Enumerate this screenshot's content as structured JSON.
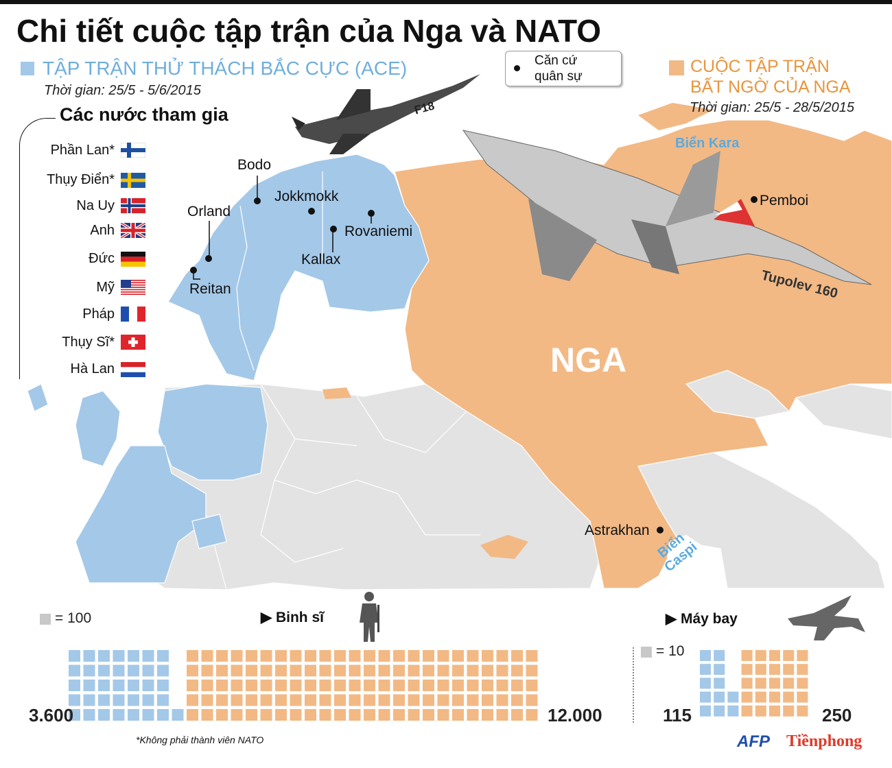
{
  "title": "Chi tiết cuộc tập trận của Nga và NATO",
  "ace": {
    "title": "TẬP TRẬN THỬ THÁCH BẮC CỰC (ACE)",
    "time": "Thời gian: 25/5 - 5/6/2015",
    "color": "#a4c8e8"
  },
  "russia_exercise": {
    "title_line1": "CUỘC TẬP TRẬN",
    "title_line2": "BẤT NGỜ  CỦA NGA",
    "time": "Thời gian: 25/5 - 28/5/2015",
    "color": "#f2b985"
  },
  "legend": {
    "base_line1": "Căn cứ",
    "base_line2": "quân sự"
  },
  "participants": {
    "title": "Các nước tham gia",
    "countries": [
      {
        "name": "Phần Lan*",
        "flag": "finland-flag"
      },
      {
        "name": "Thụy Điển*",
        "flag": "sweden-flag"
      },
      {
        "name": "Na Uy",
        "flag": "norway-flag"
      },
      {
        "name": "Anh",
        "flag": "uk-flag"
      },
      {
        "name": "Đức",
        "flag": "germany-flag"
      },
      {
        "name": "Mỹ",
        "flag": "usa-flag"
      },
      {
        "name": "Pháp",
        "flag": "france-flag"
      },
      {
        "name": "Thụy Sĩ*",
        "flag": "switzerland-flag"
      },
      {
        "name": "Hà Lan",
        "flag": "netherlands-flag"
      }
    ]
  },
  "map": {
    "bases": {
      "bodo": "Bodo",
      "orland": "Orland",
      "jokkmokk": "Jokkmokk",
      "rovaniemi": "Rovaniemi",
      "kallax": "Kallax",
      "reitan": "Reitan",
      "pemboi": "Pemboi",
      "astrakhan": "Astrakhan"
    },
    "seas": {
      "kara": "Biển Kara",
      "caspi_line1": "Biển",
      "caspi_line2": "Caspi"
    },
    "russia_label": "NGA",
    "aircraft": {
      "f18": "F18",
      "tu160": "Tupolev 160"
    }
  },
  "stats": {
    "soldiers": {
      "label": "Binh sĩ",
      "unit": "= 100",
      "ace_value": "3.600",
      "russia_value": "12.000",
      "ace_count": 3600,
      "russia_count": 12000,
      "unit_value": 100
    },
    "aircraft": {
      "label": "Máy bay",
      "unit": "= 10",
      "ace_value": "115",
      "russia_value": "250",
      "ace_count": 115,
      "russia_count": 250,
      "unit_value": 10
    }
  },
  "footnote": "*Không phải thành viên NATO",
  "credits": {
    "agency": "AFP",
    "publisher": "Tiềnphong"
  }
}
